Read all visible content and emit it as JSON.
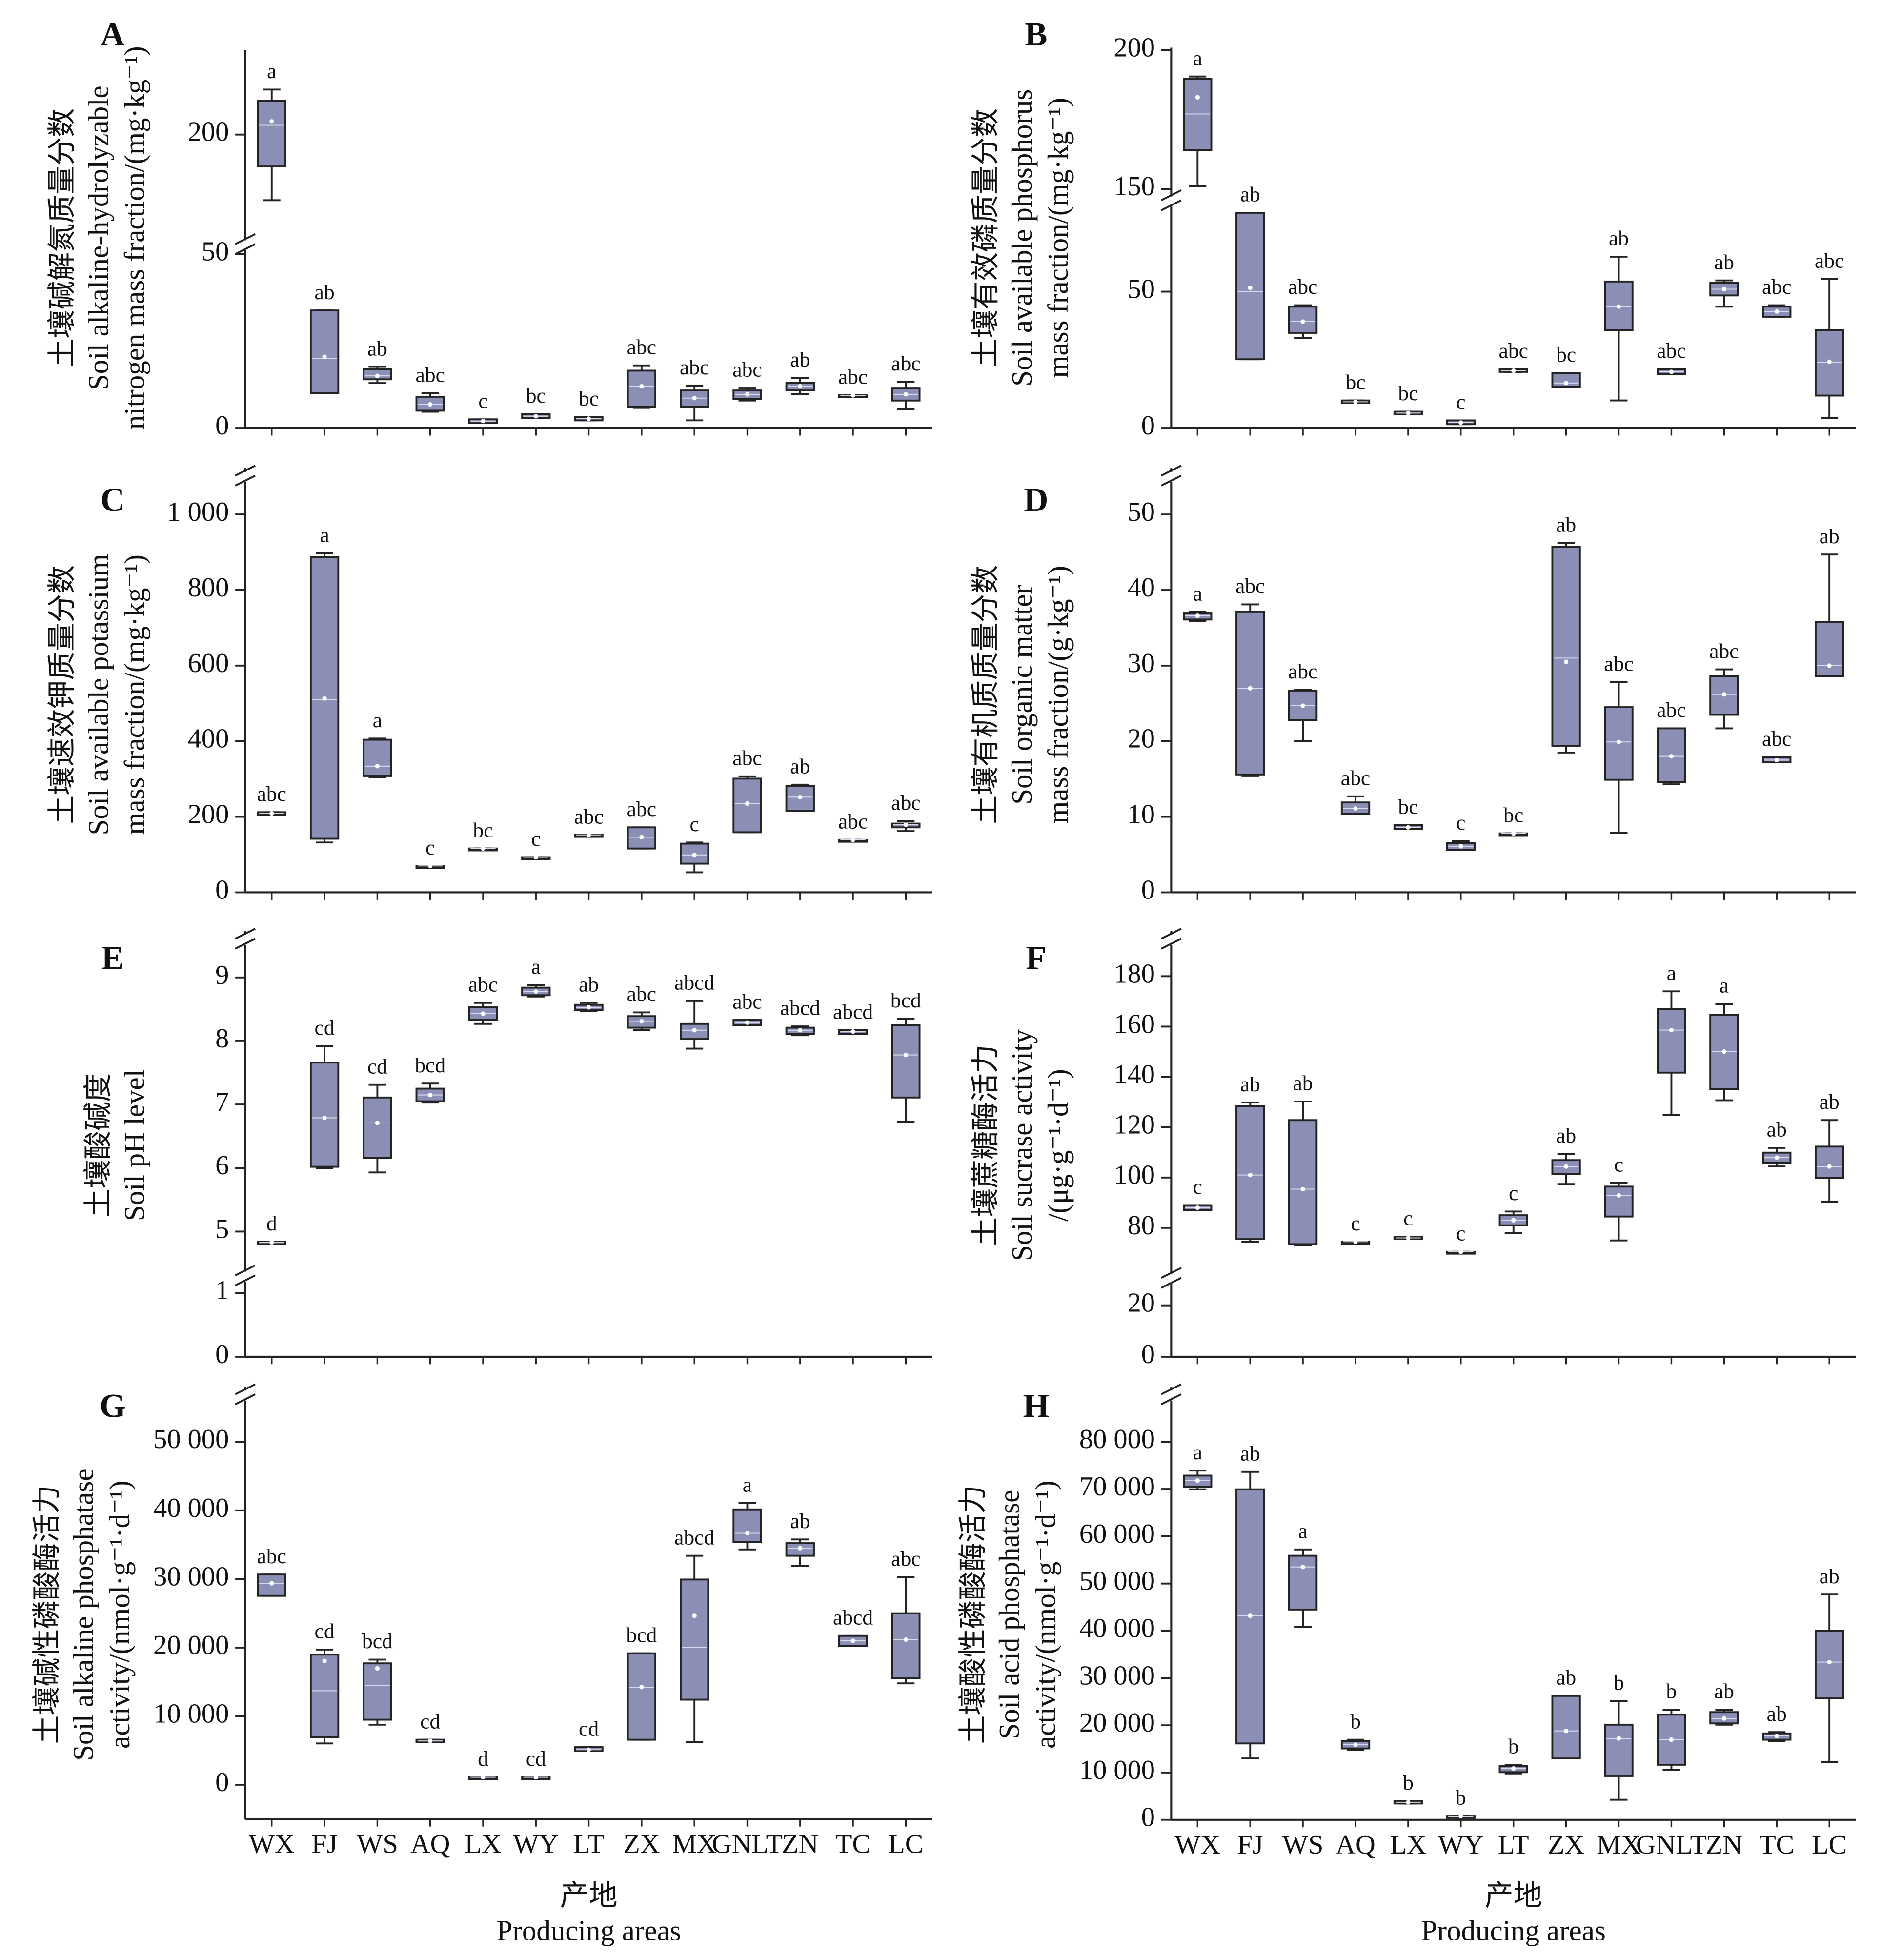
{
  "chart_data": [
    {
      "type": "box",
      "panel": "A",
      "ylabel": [
        "土壤碱解氮质量分数",
        "Soil alkaline-hydrolyzable",
        "nitrogen mass fraction/(mg·kg⁻¹)"
      ],
      "axis_segments": [
        {
          "ylim": [
            0,
            50
          ],
          "yticks": [
            0,
            50
          ]
        },
        {
          "ylim": [
            145,
            245
          ],
          "yticks": [
            200
          ]
        }
      ],
      "whisker_low": [
        165,
        10.1,
        12.9,
        4.7,
        1.4,
        2.9,
        2.2,
        5.8,
        2.2,
        7.9,
        9.7,
        9.4,
        5.4
      ],
      "q1": [
        183,
        10.1,
        14.0,
        5.0,
        1.4,
        2.9,
        2.2,
        6.1,
        6.1,
        8.3,
        10.8,
        9.4,
        7.9
      ],
      "median": [
        205,
        20,
        15,
        6.8,
        2,
        3.4,
        2.7,
        12,
        8.6,
        9.7,
        12,
        9.4,
        9.7
      ],
      "q3": [
        218,
        33.8,
        16.9,
        9.0,
        2.5,
        4.0,
        3.2,
        16.5,
        10.8,
        10.8,
        13.0,
        9.4,
        11.5
      ],
      "whisker_high": [
        224,
        33.8,
        17.6,
        10.0,
        2.5,
        4.0,
        3.2,
        18.0,
        12.2,
        11.5,
        14.4,
        9.4,
        13.3
      ],
      "mean": [
        207,
        20.5,
        15,
        6.8,
        2,
        3.4,
        2.7,
        12,
        8.6,
        9.7,
        12,
        9.4,
        9.7
      ],
      "letters": [
        "a",
        "ab",
        "ab",
        "abc",
        "c",
        "bc",
        "bc",
        "abc",
        "abc",
        "abc",
        "ab",
        "abc",
        "abc"
      ],
      "color": "#8b8fb5"
    },
    {
      "type": "box",
      "panel": "B",
      "ylabel": [
        "土壤有效磷质量分数",
        "Soil available phosphorus",
        "mass fraction/(mg·kg⁻¹)"
      ],
      "axis_segments": [
        {
          "ylim": [
            0,
            80
          ],
          "yticks": [
            0,
            50
          ]
        },
        {
          "ylim": [
            148,
            200
          ],
          "yticks": [
            150,
            200
          ]
        }
      ],
      "whisker_low": [
        151,
        25.2,
        33,
        9.2,
        5,
        1.4,
        20.6,
        15.1,
        10.1,
        19.7,
        44.5,
        40.8,
        3.7
      ],
      "q1": [
        164,
        25.2,
        34.9,
        9.2,
        5,
        1.4,
        20.6,
        15.1,
        35.8,
        19.7,
        48.6,
        40.8,
        11.9
      ],
      "median": [
        177,
        50,
        39,
        9.6,
        5.5,
        2,
        21,
        16.5,
        44.5,
        20.6,
        50.9,
        42.7,
        24
      ],
      "q3": [
        189.6,
        78.9,
        44.5,
        10.1,
        6,
        2.8,
        21.6,
        20.2,
        53.7,
        21.6,
        53.2,
        44.5,
        35.8
      ],
      "whisker_high": [
        190.5,
        78.9,
        45,
        10.1,
        6,
        2.8,
        21.6,
        20.2,
        62.8,
        21.6,
        54.1,
        45,
        54.6
      ],
      "mean": [
        183,
        51.4,
        39,
        9.6,
        5.5,
        2,
        21,
        16.5,
        44.5,
        20.6,
        50.9,
        42.7,
        24.3
      ],
      "letters": [
        "a",
        "ab",
        "abc",
        "bc",
        "bc",
        "c",
        "abc",
        "bc",
        "ab",
        "abc",
        "ab",
        "abc",
        "abc"
      ],
      "color": "#8b8fb5"
    },
    {
      "type": "box",
      "panel": "C",
      "ylabel": [
        "土壤速效钾质量分数",
        "Soil available potassium",
        "mass fraction/(mg·kg⁻¹)"
      ],
      "axis_segments": [
        {
          "ylim": [
            0,
            1060
          ],
          "yticks": [
            0,
            200,
            400,
            600,
            800,
            {
              "value": 1000,
              "label": "1 000"
            }
          ]
        }
      ],
      "whisker_low": [
        205,
        132,
        305,
        70,
        116,
        93,
        152,
        116,
        53,
        159,
        215,
        139,
        162
      ],
      "q1": [
        205,
        142,
        308,
        70,
        116,
        93,
        152,
        116,
        76,
        159,
        215,
        139,
        172
      ],
      "median": [
        209,
        510,
        334,
        70,
        116,
        93,
        152,
        146,
        99,
        235,
        252,
        139,
        179
      ],
      "q3": [
        212,
        887,
        404,
        70,
        116,
        93,
        152,
        172,
        129,
        301,
        281,
        139,
        182
      ],
      "whisker_high": [
        212,
        897,
        407,
        70,
        116,
        93,
        152,
        172,
        132,
        307,
        285,
        139,
        189
      ],
      "mean": [
        209,
        513,
        334,
        70,
        116,
        93,
        152,
        146,
        99,
        235,
        252,
        139,
        179
      ],
      "letters": [
        "abc",
        "a",
        "a",
        "c",
        "bc",
        "c",
        "abc",
        "abc",
        "c",
        "abc",
        "ab",
        "abc",
        "abc"
      ],
      "color": "#8b8fb5"
    },
    {
      "type": "box",
      "panel": "D",
      "ylabel": [
        "土壤有机质质量分数",
        "Soil organic matter",
        "mass fraction/(g·kg⁻¹)"
      ],
      "axis_segments": [
        {
          "ylim": [
            0,
            53.5
          ],
          "yticks": [
            0,
            10,
            20,
            30,
            40,
            50
          ]
        }
      ],
      "whisker_low": [
        35.9,
        15.4,
        20,
        10.4,
        8.4,
        5.6,
        7.8,
        18.5,
        7.9,
        14.3,
        21.7,
        17.2,
        28.6
      ],
      "q1": [
        36.1,
        15.6,
        22.8,
        10.4,
        8.4,
        5.6,
        7.8,
        19.4,
        14.9,
        14.6,
        23.5,
        17.2,
        28.6
      ],
      "median": [
        36.6,
        27,
        24.7,
        11.1,
        8.6,
        6.1,
        7.8,
        31,
        19.9,
        18,
        26.2,
        17.5,
        30
      ],
      "q3": [
        36.9,
        37.1,
        26.7,
        11.9,
        8.9,
        6.5,
        7.8,
        45.7,
        24.5,
        21.7,
        28.6,
        17.9,
        35.8
      ],
      "whisker_high": [
        37.1,
        38.1,
        26.8,
        12.7,
        8.9,
        6.8,
        7.8,
        46.2,
        27.8,
        21.7,
        29.5,
        17.9,
        44.7
      ],
      "mean": [
        36.6,
        27,
        24.7,
        11.1,
        8.6,
        6.1,
        7.8,
        30.5,
        19.9,
        18,
        26.2,
        17.5,
        30
      ],
      "letters": [
        "a",
        "abc",
        "abc",
        "abc",
        "bc",
        "c",
        "bc",
        "ab",
        "abc",
        "abc",
        "abc",
        "abc",
        "ab"
      ],
      "color": "#8b8fb5"
    },
    {
      "type": "box",
      "panel": "E",
      "ylabel": [
        "土壤酸碱度",
        "Soil pH level"
      ],
      "axis_segments": [
        {
          "ylim": [
            0,
            1
          ],
          "yticks": [
            0,
            1
          ]
        },
        {
          "ylim": [
            4.7,
            9.5
          ],
          "yticks": [
            5,
            6,
            7,
            8,
            9
          ]
        }
      ],
      "whisker_low": [
        4.8,
        6.0,
        5.93,
        7.03,
        8.27,
        8.7,
        8.47,
        8.17,
        7.88,
        8.25,
        8.09,
        8.11,
        6.73
      ],
      "q1": [
        4.8,
        6.02,
        6.16,
        7.05,
        8.33,
        8.72,
        8.49,
        8.21,
        8.03,
        8.25,
        8.11,
        8.11,
        7.11
      ],
      "median": [
        4.83,
        6.79,
        6.71,
        7.15,
        8.43,
        8.78,
        8.53,
        8.31,
        8.17,
        8.29,
        8.17,
        8.15,
        7.78
      ],
      "q3": [
        4.84,
        7.66,
        7.11,
        7.25,
        8.53,
        8.84,
        8.57,
        8.39,
        8.27,
        8.33,
        8.21,
        8.17,
        8.25
      ],
      "whisker_high": [
        4.84,
        7.92,
        7.31,
        7.33,
        8.6,
        8.88,
        8.6,
        8.45,
        8.63,
        8.33,
        8.23,
        8.17,
        8.35
      ],
      "mean": [
        4.83,
        6.79,
        6.71,
        7.15,
        8.43,
        8.78,
        8.53,
        8.31,
        8.17,
        8.29,
        8.17,
        8.15,
        7.78
      ],
      "letters": [
        "d",
        "cd",
        "cd",
        "bcd",
        "abc",
        "a",
        "ab",
        "abc",
        "abcd",
        "abc",
        "abcd",
        "abcd",
        "bcd"
      ],
      "color": "#8b8fb5"
    },
    {
      "type": "box",
      "panel": "F",
      "ylabel": [
        "土壤蔗糖酶活力",
        "Soil sucrase activity",
        "/(μg·g⁻¹·d⁻¹)"
      ],
      "axis_segments": [
        {
          "ylim": [
            0,
            25
          ],
          "yticks": [
            0,
            20
          ]
        },
        {
          "ylim": [
            65,
            190
          ],
          "yticks": [
            80,
            100,
            120,
            140,
            160,
            180
          ]
        }
      ],
      "whisker_low": [
        87,
        74.5,
        73,
        74.5,
        75.5,
        70.5,
        78,
        97.4,
        75,
        124.8,
        130.7,
        104.4,
        90.4
      ],
      "q1": [
        87,
        75.5,
        73.5,
        74.5,
        75.5,
        70.5,
        81,
        101.4,
        84.5,
        141.7,
        135.2,
        105.9,
        99.9
      ],
      "median": [
        88,
        101,
        95.4,
        74.5,
        76,
        70.5,
        83,
        104.4,
        92.9,
        158.6,
        150.1,
        107.9,
        104.4
      ],
      "q3": [
        89,
        128.3,
        122.8,
        74.5,
        76.5,
        70.5,
        85,
        106.9,
        96.4,
        167,
        164.6,
        109.9,
        112.3
      ],
      "whisker_high": [
        89,
        129.8,
        130.2,
        74.5,
        76.5,
        70.5,
        86.5,
        109.4,
        97.9,
        174,
        169,
        111.8,
        122.8
      ],
      "mean": [
        88,
        101,
        95.4,
        74.5,
        76,
        70.5,
        83,
        104.4,
        92.9,
        158.6,
        150.1,
        107.9,
        104.4
      ],
      "letters": [
        "c",
        "ab",
        "ab",
        "c",
        "c",
        "c",
        "c",
        "ab",
        "c",
        "a",
        "a",
        "ab",
        "ab"
      ],
      "color": "#8b8fb5"
    },
    {
      "type": "box",
      "panel": "G",
      "ylabel": [
        "土壤碱性磷酸酶活力",
        "Soil alkaline phosphatase",
        "activity/(nmol·g⁻¹·d⁻¹)"
      ],
      "axis_segments": [
        {
          "ylim": [
            -5000,
            55000
          ],
          "yticks": [
            0,
            {
              "value": 10000,
              "label": "10 000"
            },
            {
              "value": 20000,
              "label": "20 000"
            },
            {
              "value": 30000,
              "label": "30 000"
            },
            {
              "value": 40000,
              "label": "40 000"
            },
            {
              "value": 50000,
              "label": "50 000"
            }
          ]
        }
      ],
      "categories": [
        "WX",
        "FJ",
        "WS",
        "AQ",
        "LX",
        "WY",
        "LT",
        "ZX",
        "MX",
        "GNLT",
        "ZN",
        "TC",
        "LC"
      ],
      "xlabel": [
        "产地",
        "Producing areas"
      ],
      "whisker_low": [
        27555,
        6022,
        8759,
        6204,
        1095,
        1095,
        4927,
        6569,
        6204,
        34307,
        31934,
        20255,
        14781
      ],
      "q1": [
        27555,
        6934,
        9489,
        6204,
        1095,
        1095,
        4927,
        6569,
        12409,
        35401,
        33394,
        20255,
        15511
      ],
      "median": [
        29380,
        13700,
        14500,
        6387,
        1095,
        1095,
        5100,
        14200,
        20000,
        36679,
        34489,
        20985,
        21168
      ],
      "q3": [
        30657,
        18978,
        17700,
        6569,
        1095,
        1095,
        5474,
        19161,
        29927,
        40146,
        35219,
        21715,
        25000
      ],
      "whisker_high": [
        30657,
        19708,
        18248,
        6569,
        1095,
        1095,
        5474,
        19161,
        33394,
        41058,
        35766,
        21715,
        30292
      ],
      "mean": [
        29380,
        18066,
        16971,
        6387,
        1095,
        1095,
        5100,
        14234,
        24635,
        36679,
        34489,
        20985,
        21168
      ],
      "letters": [
        "abc",
        "cd",
        "bcd",
        "cd",
        "d",
        "cd",
        "cd",
        "bcd",
        "abcd",
        "a",
        "ab",
        "abcd",
        "abc"
      ],
      "color": "#8b8fb5"
    },
    {
      "type": "box",
      "panel": "H",
      "ylabel": [
        "土壤酸性磷酸酶活力",
        "Soil acid phosphatase",
        "activity/(nmol·g⁻¹·d⁻¹)"
      ],
      "axis_segments": [
        {
          "ylim": [
            0,
            85000
          ],
          "yticks": [
            0,
            {
              "value": 10000,
              "label": "10 000"
            },
            {
              "value": 20000,
              "label": "20 000"
            },
            {
              "value": 30000,
              "label": "30 000"
            },
            {
              "value": 40000,
              "label": "40 000"
            },
            {
              "value": 50000,
              "label": "50 000"
            },
            {
              "value": 60000,
              "label": "60 000"
            },
            {
              "value": 70000,
              "label": "70 000"
            },
            {
              "value": 80000,
              "label": "80 000"
            }
          ]
        }
      ],
      "categories": [
        "WX",
        "FJ",
        "WS",
        "AQ",
        "LX",
        "WY",
        "LT",
        "ZX",
        "MX",
        "GNLT",
        "ZN",
        "TC",
        "LC"
      ],
      "xlabel": [
        "产地",
        "Producing areas"
      ],
      "whisker_low": [
        69934,
        12980,
        40795,
        14834,
        3444,
        795,
        9801,
        12980,
        4238,
        10596,
        20132,
        16689,
        12185
      ],
      "q1": [
        70464,
        16159,
        44503,
        15099,
        3444,
        795,
        10066,
        12980,
        9272,
        11656,
        20397,
        16954,
        25695
      ],
      "median": [
        71788,
        43179,
        53510,
        15894,
        3709,
        795,
        10861,
        18808,
        17219,
        16954,
        21457,
        17748,
        33377
      ],
      "q3": [
        72848,
        69934,
        55894,
        16689,
        3974,
        795,
        11391,
        26225,
        20132,
        22252,
        22781,
        18278,
        40000
      ],
      "whisker_high": [
        73907,
        73642,
        57219,
        16954,
        3974,
        795,
        11656,
        26225,
        25166,
        23311,
        23311,
        18543,
        47682
      ],
      "mean": [
        71788,
        43179,
        53510,
        15894,
        3709,
        795,
        10861,
        18808,
        17219,
        16954,
        21457,
        17748,
        33377
      ],
      "letters": [
        "a",
        "ab",
        "a",
        "b",
        "b",
        "b",
        "b",
        "ab",
        "b",
        "b",
        "ab",
        "ab",
        "ab"
      ],
      "color": "#8b8fb5"
    }
  ]
}
